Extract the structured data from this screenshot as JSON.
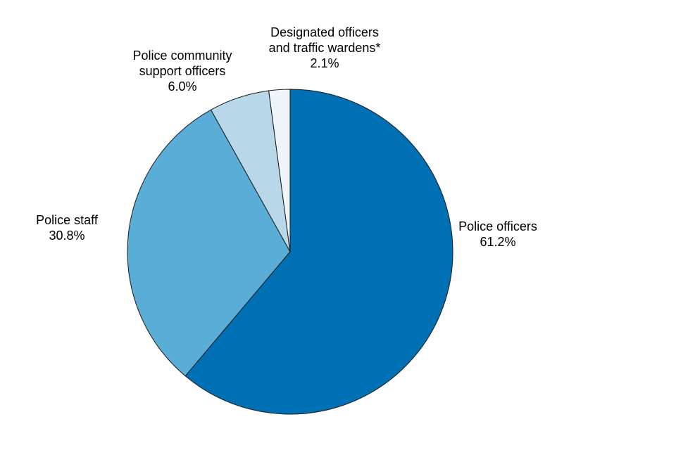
{
  "chart_data": {
    "type": "pie",
    "title": "",
    "start": "12 o'clock",
    "direction": "clockwise",
    "slices": [
      {
        "name_lines": [
          "Police officers"
        ],
        "value": 61.2,
        "value_label": "61.2%",
        "color": "#0070b4"
      },
      {
        "name_lines": [
          "Police staff"
        ],
        "value": 30.8,
        "value_label": "30.8%",
        "color": "#5aadd6"
      },
      {
        "name_lines": [
          "Police community",
          "support officers"
        ],
        "value": 6.0,
        "value_label": "6.0%",
        "color": "#b8d8ea"
      },
      {
        "name_lines": [
          "Designated officers",
          "and traffic wardens*"
        ],
        "value": 2.1,
        "value_label": "2.1%",
        "color": "#eef6fc"
      }
    ]
  }
}
